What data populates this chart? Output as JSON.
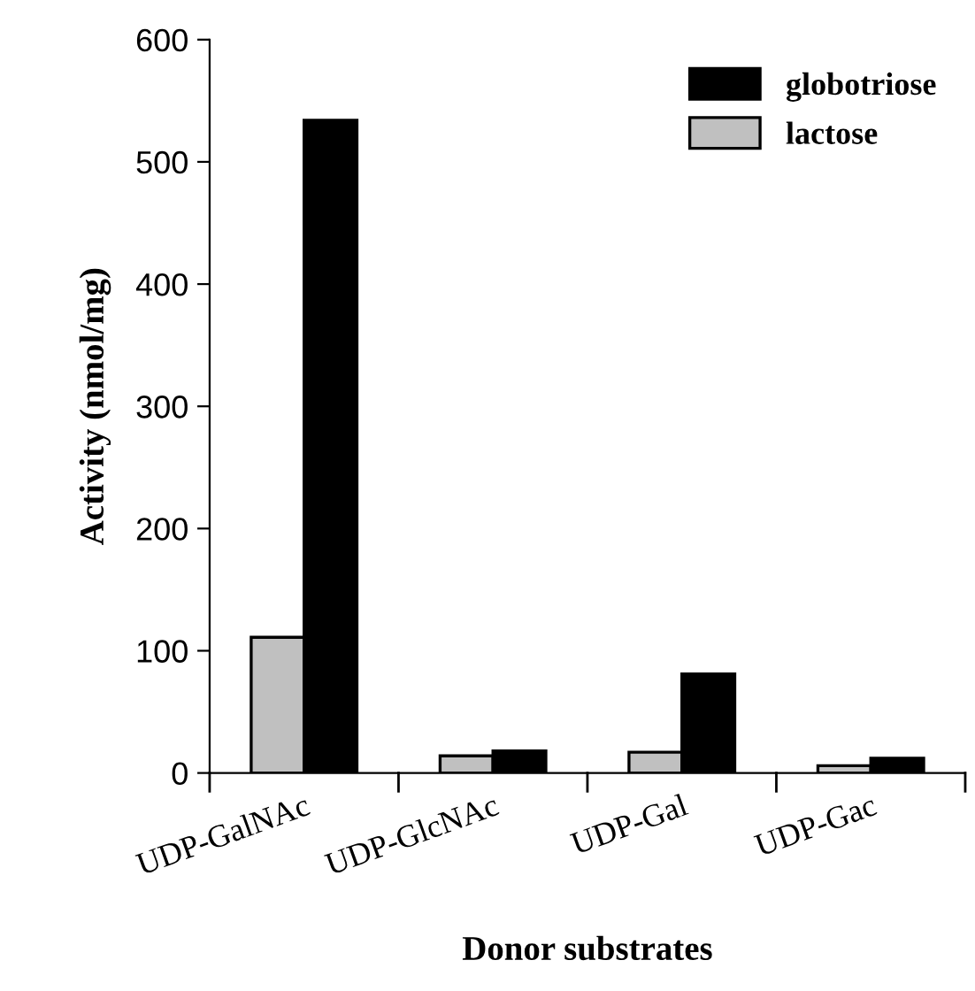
{
  "chart_data": {
    "type": "bar",
    "xlabel": "Donor substrates",
    "ylabel": "Activity (nmol/mg)",
    "categories": [
      "UDP-GalNAc",
      "UDP-GlcNAc",
      "UDP-Gal",
      "UDP-Gac"
    ],
    "series": [
      {
        "name": "lactose",
        "color": "#c0c0c0",
        "values": [
          111,
          14,
          17,
          6
        ]
      },
      {
        "name": "globotriose",
        "color": "#000000",
        "values": [
          534,
          18,
          81,
          12
        ]
      }
    ],
    "ylim": [
      0,
      600
    ],
    "yticks": [
      0,
      100,
      200,
      300,
      400,
      500,
      600
    ],
    "grid": false,
    "legend": "top right"
  }
}
